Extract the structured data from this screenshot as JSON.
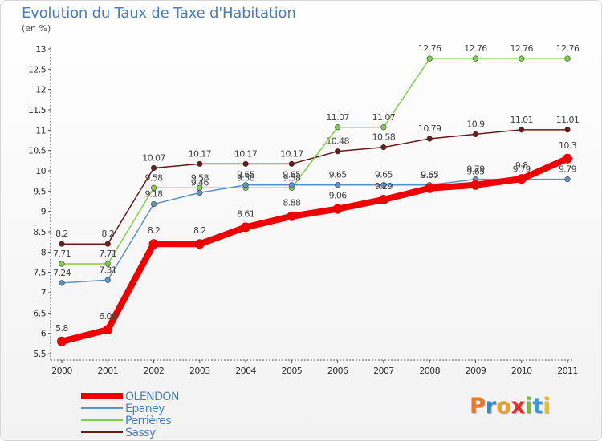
{
  "title": "Evolution du Taux de Taxe d'Habitation",
  "subtitle": "(en %)",
  "logo": {
    "text": "Proxiti",
    "colors": [
      "#e8782a",
      "#2e8bcf",
      "#e8a12a",
      "#d9342b",
      "#7ab648",
      "#3a9ad9",
      "#e8c12a"
    ]
  },
  "chart_data": {
    "type": "line",
    "x": [
      "2000",
      "2001",
      "2002",
      "2003",
      "2004",
      "2005",
      "2006",
      "2007",
      "2008",
      "2009",
      "2010",
      "2011"
    ],
    "ylim": [
      5.5,
      13
    ],
    "yticks": [
      "5.5",
      "6",
      "6.5",
      "7",
      "7.5",
      "8",
      "8.5",
      "9",
      "9.5",
      "10",
      "10.5",
      "11",
      "11.5",
      "12",
      "12.5",
      "13"
    ],
    "grid": false,
    "legend_position": "bottom-left",
    "series": [
      {
        "name": "Sassy",
        "color": "#6b1a1a",
        "values": [
          8.2,
          8.2,
          10.07,
          10.17,
          10.17,
          10.17,
          10.48,
          10.58,
          10.79,
          10.9,
          11.01,
          11.01
        ],
        "labels": [
          "8.2",
          "8.2",
          "10.07",
          "10.17",
          "10.17",
          "10.17",
          "10.48",
          "10.58",
          "10.79",
          "10.9",
          "11.01",
          "11.01"
        ]
      },
      {
        "name": "Perrières",
        "color": "#7fd04a",
        "values": [
          7.71,
          7.71,
          9.58,
          9.58,
          9.58,
          9.58,
          11.07,
          11.07,
          12.76,
          12.76,
          12.76,
          12.76
        ],
        "labels": [
          "7.71",
          "7.71",
          "9.58",
          "9.58",
          "9.58",
          "9.58",
          "11.07",
          "11.07",
          "12.76",
          "12.76",
          "12.76",
          "12.76"
        ]
      },
      {
        "name": "Epaney",
        "color": "#5b93c9",
        "values": [
          7.24,
          7.31,
          9.18,
          9.46,
          9.65,
          9.65,
          9.65,
          9.65,
          9.65,
          9.79,
          9.79,
          9.79
        ],
        "labels": [
          "7.24",
          "7.31",
          "9.18",
          "9.46",
          "9.65",
          "9.65",
          "9.65",
          "9.65",
          "9.65",
          "9.79",
          "9.79",
          "9.79"
        ]
      },
      {
        "name": "OLENDON",
        "color": "#ee0000",
        "values": [
          5.8,
          6.09,
          8.2,
          8.2,
          8.61,
          8.88,
          9.06,
          9.29,
          9.57,
          9.65,
          9.8,
          10.3
        ],
        "labels": [
          "5.8",
          "6.09",
          "8.2",
          "8.2",
          "8.61",
          "8.88",
          "9.06",
          "9.29",
          "9.57",
          "9.65",
          "9.8",
          "10.3"
        ]
      }
    ],
    "legend": [
      "OLENDON",
      "Epaney",
      "Perrières",
      "Sassy"
    ]
  }
}
